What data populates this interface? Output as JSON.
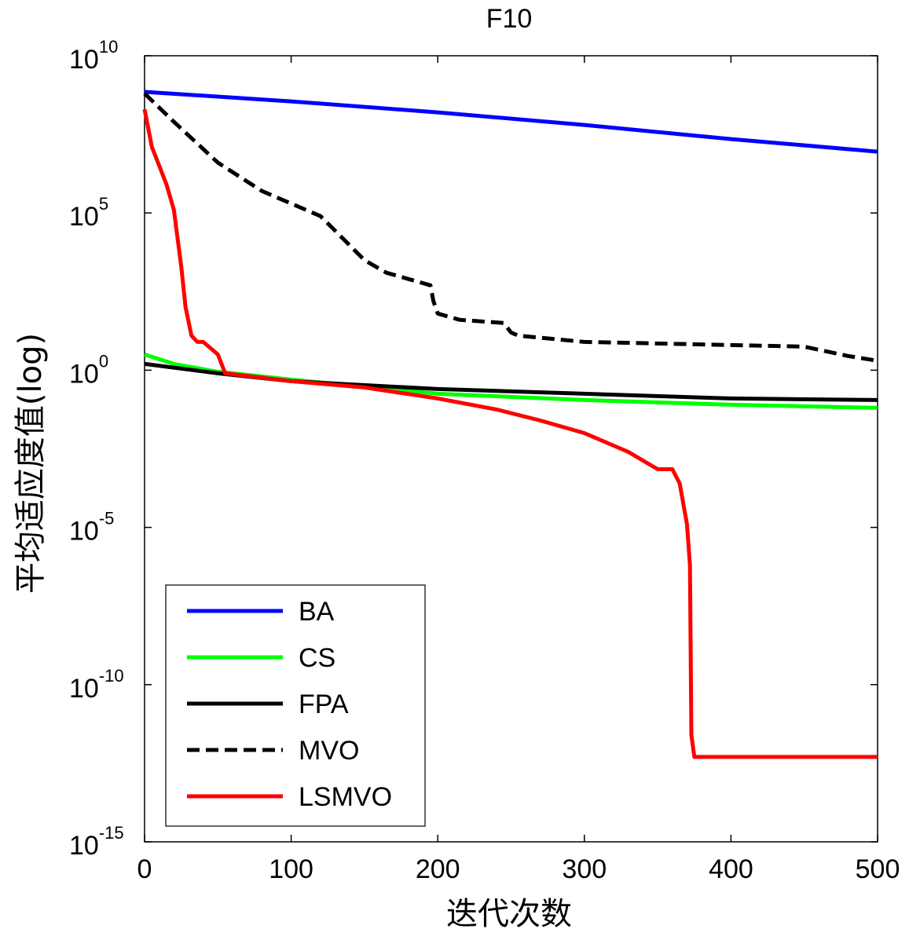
{
  "chart_data": {
    "type": "line",
    "title": "F10",
    "xlabel": "迭代次数",
    "ylabel": "平均适应度值(log)",
    "xlim": [
      0,
      500
    ],
    "ylim_log10": [
      -15,
      10
    ],
    "y_scale": "log",
    "x_ticks": [
      "0",
      "100",
      "200",
      "300",
      "400",
      "500"
    ],
    "y_ticks": [
      {
        "base": "10",
        "exp": "10",
        "value": 10
      },
      {
        "base": "10",
        "exp": "5",
        "value": 5
      },
      {
        "base": "10",
        "exp": "0",
        "value": 0
      },
      {
        "base": "10",
        "exp": "-5",
        "value": -5
      },
      {
        "base": "10",
        "exp": "-10",
        "value": -10
      },
      {
        "base": "10",
        "exp": "-15",
        "value": -15
      }
    ],
    "legend_position": "bottom-left",
    "series": [
      {
        "name": "BA",
        "color": "#0000ff",
        "dash": "solid",
        "points": [
          [
            0,
            8.85
          ],
          [
            100,
            8.55
          ],
          [
            200,
            8.2
          ],
          [
            300,
            7.8
          ],
          [
            400,
            7.35
          ],
          [
            500,
            6.95
          ]
        ]
      },
      {
        "name": "CS",
        "color": "#00ff00",
        "dash": "solid",
        "points": [
          [
            0,
            0.5
          ],
          [
            20,
            0.2
          ],
          [
            50,
            -0.05
          ],
          [
            100,
            -0.3
          ],
          [
            200,
            -0.75
          ],
          [
            300,
            -0.95
          ],
          [
            400,
            -1.1
          ],
          [
            500,
            -1.2
          ]
        ]
      },
      {
        "name": "FPA",
        "color": "#000000",
        "dash": "solid",
        "points": [
          [
            0,
            0.2
          ],
          [
            50,
            -0.1
          ],
          [
            100,
            -0.35
          ],
          [
            200,
            -0.6
          ],
          [
            300,
            -0.75
          ],
          [
            400,
            -0.9
          ],
          [
            500,
            -0.95
          ]
        ]
      },
      {
        "name": "MVO",
        "color": "#000000",
        "dash": "dashed",
        "points": [
          [
            0,
            8.8
          ],
          [
            20,
            7.9
          ],
          [
            50,
            6.6
          ],
          [
            80,
            5.7
          ],
          [
            120,
            4.9
          ],
          [
            135,
            4.2
          ],
          [
            150,
            3.5
          ],
          [
            165,
            3.1
          ],
          [
            180,
            2.9
          ],
          [
            195,
            2.7
          ],
          [
            197,
            2.2
          ],
          [
            200,
            1.8
          ],
          [
            215,
            1.6
          ],
          [
            245,
            1.5
          ],
          [
            250,
            1.2
          ],
          [
            255,
            1.1
          ],
          [
            300,
            0.9
          ],
          [
            400,
            0.8
          ],
          [
            450,
            0.75
          ],
          [
            480,
            0.45
          ],
          [
            500,
            0.3
          ]
        ]
      },
      {
        "name": "LSMVO",
        "color": "#ff0000",
        "dash": "solid",
        "points": [
          [
            0,
            8.3
          ],
          [
            5,
            7.1
          ],
          [
            10,
            6.5
          ],
          [
            15,
            5.9
          ],
          [
            20,
            5.1
          ],
          [
            25,
            3.3
          ],
          [
            28,
            2.0
          ],
          [
            32,
            1.1
          ],
          [
            36,
            0.9
          ],
          [
            40,
            0.9
          ],
          [
            45,
            0.7
          ],
          [
            50,
            0.5
          ],
          [
            55,
            -0.1
          ],
          [
            100,
            -0.35
          ],
          [
            150,
            -0.55
          ],
          [
            200,
            -0.9
          ],
          [
            240,
            -1.25
          ],
          [
            270,
            -1.6
          ],
          [
            300,
            -2.0
          ],
          [
            330,
            -2.6
          ],
          [
            350,
            -3.15
          ],
          [
            360,
            -3.15
          ],
          [
            365,
            -3.6
          ],
          [
            370,
            -4.9
          ],
          [
            372,
            -6.2
          ],
          [
            373,
            -11.6
          ],
          [
            375,
            -12.3
          ],
          [
            500,
            -12.3
          ]
        ]
      }
    ]
  }
}
